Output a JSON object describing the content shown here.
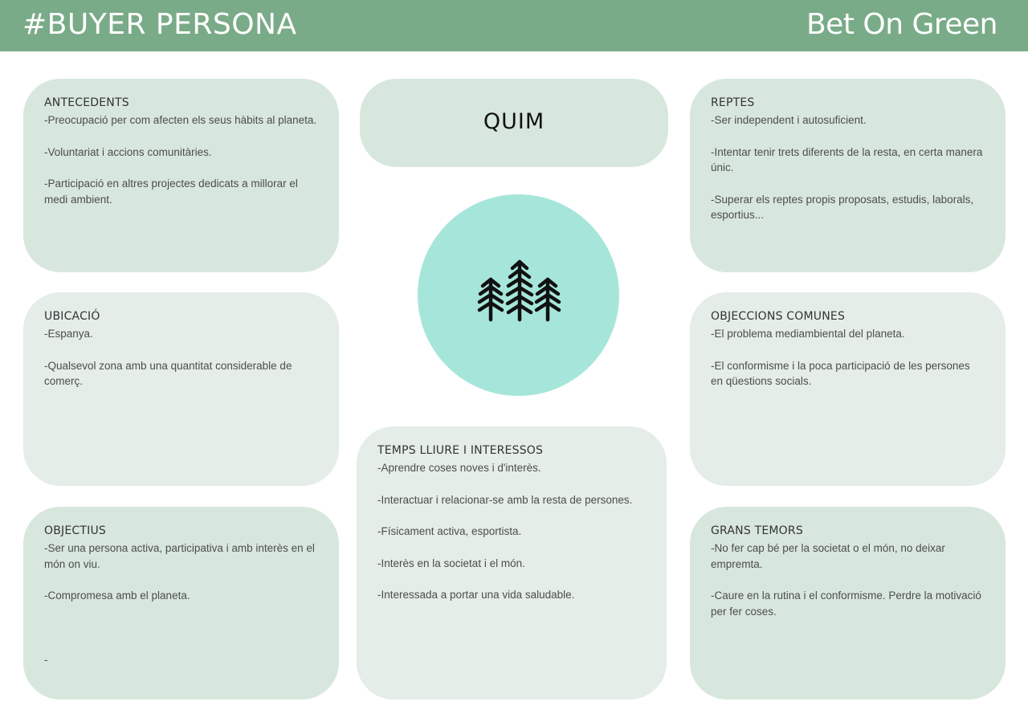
{
  "header": {
    "title": "#BUYER PERSONA",
    "brand": "Bet On Green",
    "background": "#7aab88"
  },
  "persona": {
    "name": "QUIM",
    "avatar_icon": "trees-icon",
    "avatar_color": "#a6e6da"
  },
  "cards": {
    "antecedents": {
      "title": "ANTECEDENTS",
      "lines": [
        "-Preocupació per com afecten els seus hàbits al planeta.",
        "-Voluntariat i accions comunitàries.",
        "-Participació en altres projectes dedicats a millorar el medi ambient."
      ]
    },
    "ubicacio": {
      "title": "UBICACIÓ",
      "lines": [
        "-Espanya.",
        "-Qualsevol zona amb una quantitat considerable de comerç."
      ]
    },
    "objectius": {
      "title": "OBJECTIUS",
      "lines": [
        "-Ser una persona activa, participativa i amb interès en el món on viu.",
        "-Compromesa amb el planeta."
      ],
      "trailing": "-"
    },
    "reptes": {
      "title": "REPTES",
      "lines": [
        "-Ser independent i autosuficient.",
        "-Intentar tenir trets diferents de la resta,  en certa manera únic.",
        "-Superar els reptes propis proposats, estudis, laborals, esportius..."
      ]
    },
    "objeccions": {
      "title": "OBJECCIONS COMUNES",
      "lines": [
        "-El problema mediambiental del planeta.",
        "-El conformisme i la poca participació de les persones en qüestions socials."
      ]
    },
    "temors": {
      "title": "GRANS TEMORS",
      "lines": [
        "-No fer cap bé per la societat o el món, no deixar empremta.",
        "-Caure en la rutina  i el conformisme. Perdre la motivació per fer coses."
      ]
    },
    "temps": {
      "title": "TEMPS LLIURE I INTERESSOS",
      "lines": [
        "-Aprendre coses noves i d'interès.",
        "-Interactuar i relacionar-se amb la resta de persones.",
        "-Físicament activa, esportista.",
        "-Interès en la societat i el món.",
        "-Interessada a portar una vida saludable."
      ]
    }
  }
}
